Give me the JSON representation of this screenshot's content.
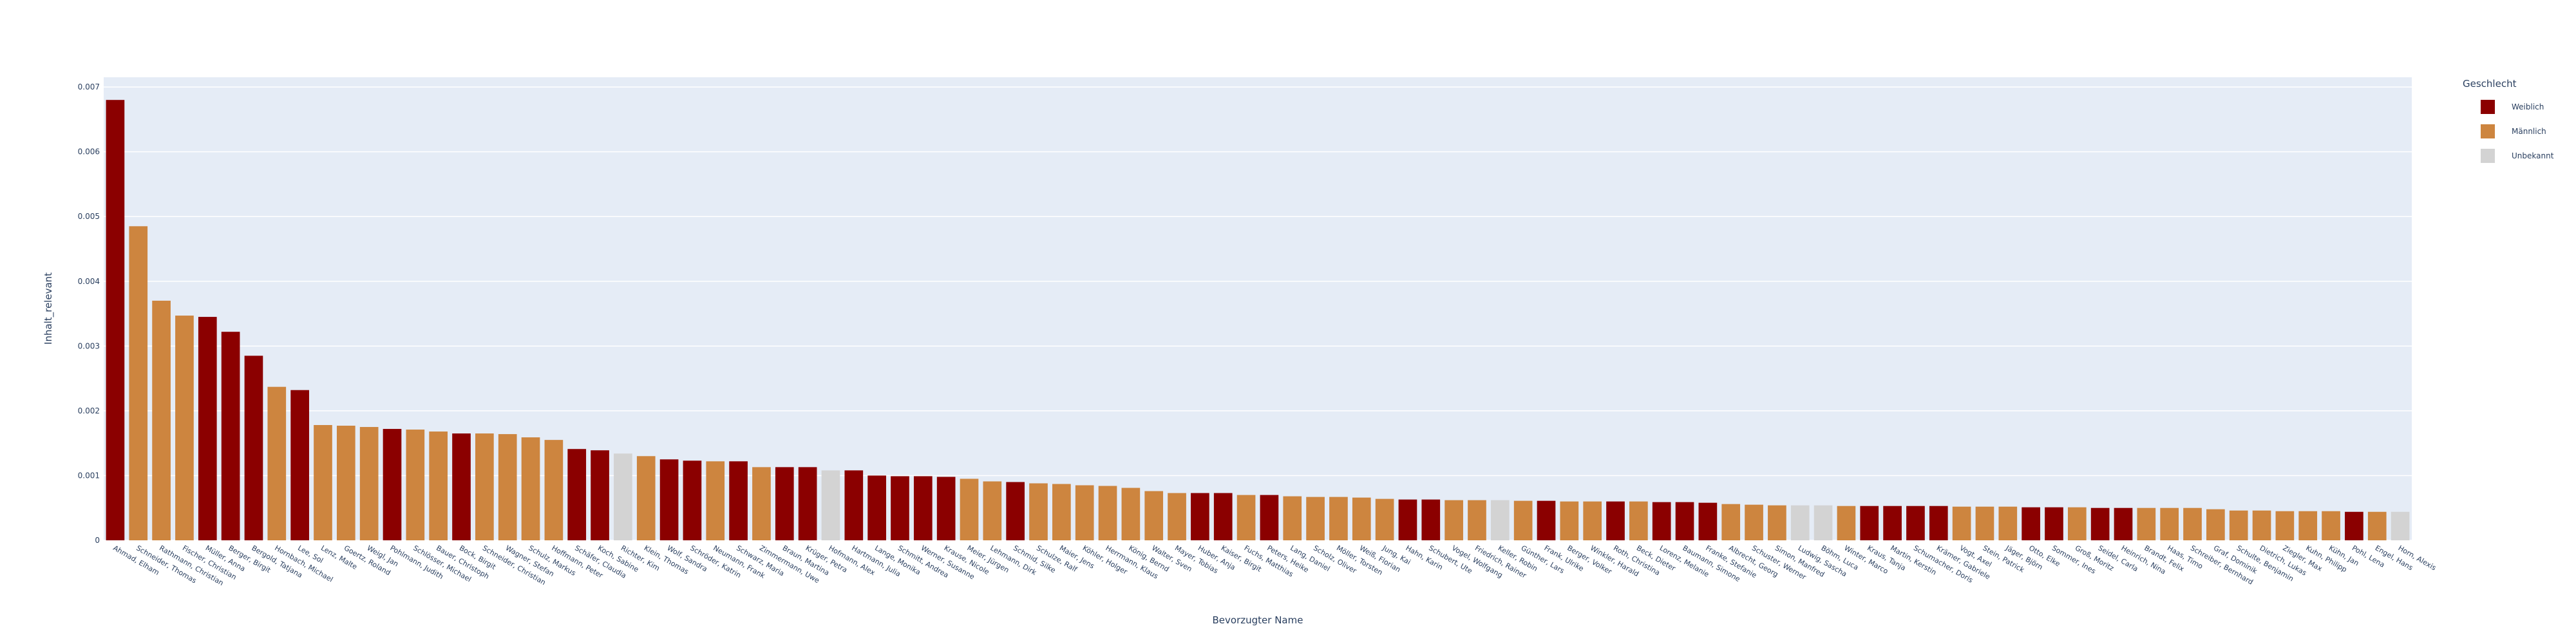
{
  "chart_data": {
    "type": "bar",
    "x_label": "Bevorzugter Name",
    "y_label": "Inhalt_relevant",
    "legend_title": "Geschlecht",
    "legend": [
      {
        "name": "Weiblich",
        "color": "#8b0000"
      },
      {
        "name": "Männlich",
        "color": "#cd853f"
      },
      {
        "name": "Unbekannt",
        "color": "#d3d3d3"
      }
    ],
    "categories": [
      "Ahmad, Elham",
      "Schneider, Thomas",
      "Rathmann, Christian",
      "Fischer, Christian",
      "Müller, Anna",
      "Berger, Birgit",
      "Bergold, Tatjana",
      "Hornbach, Michael",
      "Lee, Sol",
      "Lenz, Malte",
      "Goertz, Roland",
      "Weigl, Jan",
      "Pohlmann, Judith",
      "Schlösser, Michael",
      "Bauer, Christoph",
      "Bock, Birgit",
      "Schneider, Christian",
      "Wagner, Stefan",
      "Schulz, Markus",
      "Hoffmann, Peter",
      "Schäfer, Claudia",
      "Koch, Sabine",
      "Richter, Kim",
      "Klein, Thomas",
      "Wolf, Sandra",
      "Schröder, Katrin",
      "Neumann, Frank",
      "Schwarz, Maria",
      "Zimmermann, Uwe",
      "Braun, Martina",
      "Krüger, Petra",
      "Hofmann, Alex",
      "Hartmann, Julia",
      "Lange, Monika",
      "Schmitt, Andrea",
      "Werner, Susanne",
      "Krause, Nicole",
      "Meier, Jürgen",
      "Lehmann, Dirk",
      "Schmid, Silke",
      "Schulze, Ralf",
      "Maier, Jens",
      "Köhler, Holger",
      "Herrmann, Klaus",
      "König, Bernd",
      "Walter, Sven",
      "Mayer, Tobias",
      "Huber, Anja",
      "Kaiser, Birgit",
      "Fuchs, Matthias",
      "Peters, Heike",
      "Lang, Daniel",
      "Scholz, Oliver",
      "Möller, Torsten",
      "Weiß, Florian",
      "Jung, Kai",
      "Hahn, Karin",
      "Schubert, Ute",
      "Vogel, Wolfgang",
      "Friedrich, Rainer",
      "Keller, Robin",
      "Günther, Lars",
      "Frank, Ulrike",
      "Berger, Volker",
      "Winkler, Harald",
      "Roth, Christina",
      "Beck, Dieter",
      "Lorenz, Melanie",
      "Baumann, Simone",
      "Franke, Stefanie",
      "Albrecht, Georg",
      "Schuster, Werner",
      "Simon, Manfred",
      "Ludwig, Sascha",
      "Böhm, Luca",
      "Winter, Marco",
      "Kraus, Tanja",
      "Martin, Kerstin",
      "Schumacher, Doris",
      "Krämer, Gabriele",
      "Vogt, Axel",
      "Stein, Patrick",
      "Jäger, Björn",
      "Otto, Elke",
      "Sommer, Ines",
      "Groß, Moritz",
      "Seidel, Carla",
      "Heinrich, Nina",
      "Brandt, Felix",
      "Haas, Timo",
      "Schreiber, Bernhard",
      "Graf, Dominik",
      "Schulte, Benjamin",
      "Dietrich, Lukas",
      "Ziegler, Max",
      "Kuhn, Philipp",
      "Kühn, Jan",
      "Pohl, Lena",
      "Engel, Hans",
      "Horn, Alexis"
    ],
    "values": [
      0.0068,
      0.00485,
      0.0037,
      0.00347,
      0.00345,
      0.00322,
      0.00285,
      0.00237,
      0.00232,
      0.00178,
      0.00177,
      0.00175,
      0.00172,
      0.00171,
      0.00168,
      0.00165,
      0.00165,
      0.00164,
      0.00159,
      0.00155,
      0.00141,
      0.00139,
      0.00134,
      0.0013,
      0.00125,
      0.00123,
      0.00122,
      0.00122,
      0.00113,
      0.00113,
      0.00113,
      0.00108,
      0.00108,
      0.001,
      0.00099,
      0.00099,
      0.00098,
      0.00095,
      0.00091,
      0.0009,
      0.00088,
      0.00087,
      0.00085,
      0.00084,
      0.00081,
      0.00076,
      0.00073,
      0.00073,
      0.00073,
      0.0007,
      0.0007,
      0.00068,
      0.00067,
      0.00067,
      0.00066,
      0.00064,
      0.00063,
      0.00063,
      0.00062,
      0.00062,
      0.00062,
      0.00061,
      0.00061,
      0.0006,
      0.0006,
      0.0006,
      0.0006,
      0.00059,
      0.00059,
      0.00058,
      0.00056,
      0.00055,
      0.00054,
      0.00054,
      0.00054,
      0.00053,
      0.00053,
      0.00053,
      0.00053,
      0.00053,
      0.00052,
      0.00052,
      0.00052,
      0.00051,
      0.00051,
      0.00051,
      0.0005,
      0.0005,
      0.0005,
      0.0005,
      0.0005,
      0.00048,
      0.00046,
      0.00046,
      0.00045,
      0.00045,
      0.00045,
      0.00044,
      0.00044,
      0.00044
    ],
    "colors": [
      "#8b0000",
      "#cd853f",
      "#cd853f",
      "#cd853f",
      "#8b0000",
      "#8b0000",
      "#8b0000",
      "#cd853f",
      "#8b0000",
      "#cd853f",
      "#cd853f",
      "#cd853f",
      "#8b0000",
      "#cd853f",
      "#cd853f",
      "#8b0000",
      "#cd853f",
      "#cd853f",
      "#cd853f",
      "#cd853f",
      "#8b0000",
      "#8b0000",
      "#d3d3d3",
      "#cd853f",
      "#8b0000",
      "#8b0000",
      "#cd853f",
      "#8b0000",
      "#cd853f",
      "#8b0000",
      "#8b0000",
      "#d3d3d3",
      "#8b0000",
      "#8b0000",
      "#8b0000",
      "#8b0000",
      "#8b0000",
      "#cd853f",
      "#cd853f",
      "#8b0000",
      "#cd853f",
      "#cd853f",
      "#cd853f",
      "#cd853f",
      "#cd853f",
      "#cd853f",
      "#cd853f",
      "#8b0000",
      "#8b0000",
      "#cd853f",
      "#8b0000",
      "#cd853f",
      "#cd853f",
      "#cd853f",
      "#cd853f",
      "#cd853f",
      "#8b0000",
      "#8b0000",
      "#cd853f",
      "#cd853f",
      "#d3d3d3",
      "#cd853f",
      "#8b0000",
      "#cd853f",
      "#cd853f",
      "#8b0000",
      "#cd853f",
      "#8b0000",
      "#8b0000",
      "#8b0000",
      "#cd853f",
      "#cd853f",
      "#cd853f",
      "#d3d3d3",
      "#d3d3d3",
      "#cd853f",
      "#8b0000",
      "#8b0000",
      "#8b0000",
      "#8b0000",
      "#cd853f",
      "#cd853f",
      "#cd853f",
      "#8b0000",
      "#8b0000",
      "#cd853f",
      "#8b0000",
      "#8b0000",
      "#cd853f",
      "#cd853f",
      "#cd853f",
      "#cd853f",
      "#cd853f",
      "#cd853f",
      "#cd853f",
      "#cd853f",
      "#cd853f",
      "#8b0000",
      "#cd853f",
      "#d3d3d3"
    ],
    "ylim": [
      0,
      0.00715
    ],
    "yticks": [
      0,
      0.001,
      0.002,
      0.003,
      0.004,
      0.005,
      0.006,
      0.007
    ],
    "grid": true
  }
}
